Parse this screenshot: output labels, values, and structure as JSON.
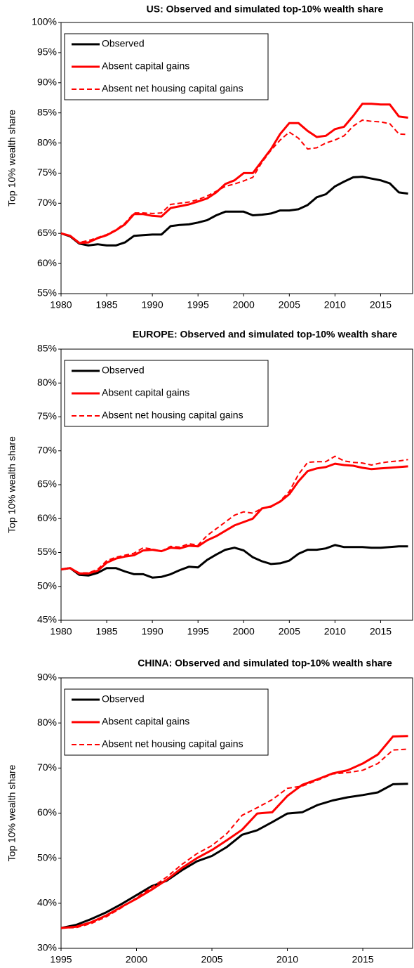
{
  "chart_data": [
    {
      "type": "line",
      "title": "US: Observed and simulated top-10% wealth share",
      "y_label": "Top 10% wealth share",
      "x": [
        1980,
        1981,
        1982,
        1983,
        1984,
        1985,
        1986,
        1987,
        1988,
        1989,
        1990,
        1991,
        1992,
        1993,
        1994,
        1995,
        1996,
        1997,
        1998,
        1999,
        2000,
        2001,
        2002,
        2003,
        2004,
        2005,
        2006,
        2007,
        2008,
        2009,
        2010,
        2011,
        2012,
        2013,
        2014,
        2015,
        2016,
        2017,
        2018
      ],
      "xlim": [
        1980,
        2018.5
      ],
      "xticks": [
        1980,
        1985,
        1990,
        1995,
        2000,
        2005,
        2010,
        2015
      ],
      "ylim": [
        55,
        100
      ],
      "yticks": [
        {
          "value": 55,
          "label": "55%"
        },
        {
          "value": 60,
          "label": "60%"
        },
        {
          "value": 65,
          "label": "65%"
        },
        {
          "value": 70,
          "label": "70%"
        },
        {
          "value": 75,
          "label": "75%"
        },
        {
          "value": 80,
          "label": "80%"
        },
        {
          "value": 85,
          "label": "85%"
        },
        {
          "value": 90,
          "label": "90%"
        },
        {
          "value": 95,
          "label": "95%"
        },
        {
          "value": 100,
          "label": "100%"
        }
      ],
      "legend": "upper left",
      "series": [
        {
          "name": "Observed",
          "color": "#000000",
          "dashed": false,
          "values": [
            65,
            64.5,
            63.3,
            63,
            63.2,
            63,
            63,
            63.5,
            64.6,
            64.7,
            64.8,
            64.8,
            66.2,
            66.4,
            66.5,
            66.8,
            67.2,
            68,
            68.6,
            68.6,
            68.6,
            68,
            68.1,
            68.3,
            68.8,
            68.8,
            69,
            69.7,
            71,
            71.5,
            72.8,
            73.6,
            74.3,
            74.4,
            74.1,
            73.8,
            73.3,
            71.8,
            71.6
          ]
        },
        {
          "name": "Absent capital gains",
          "color": "#ff0000",
          "dashed": false,
          "values": [
            65,
            64.6,
            63.4,
            63.5,
            64.2,
            64.7,
            65.5,
            66.5,
            68.2,
            68.2,
            67.9,
            67.8,
            69.2,
            69.5,
            69.8,
            70.3,
            70.8,
            71.8,
            73.2,
            73.8,
            75,
            75,
            77,
            79,
            81.5,
            83.3,
            83.3,
            82,
            81,
            81.2,
            82.3,
            82.7,
            84.5,
            86.5,
            86.5,
            86.4,
            86.4,
            84.4,
            84.2
          ]
        },
        {
          "name": "Absent net housing capital gains",
          "color": "#ff0000",
          "dashed": true,
          "values": [
            65,
            64.6,
            63.5,
            63.8,
            64.3,
            64.8,
            65.6,
            66.7,
            68.4,
            68.4,
            68.3,
            68.4,
            69.8,
            70,
            70.2,
            70.6,
            71.2,
            72,
            72.8,
            73.2,
            73.7,
            74.3,
            76.8,
            78.8,
            80.5,
            81.8,
            80.8,
            79,
            79.2,
            80,
            80.5,
            81.2,
            82.8,
            83.8,
            83.6,
            83.5,
            83.2,
            81.5,
            81.4
          ]
        }
      ]
    },
    {
      "type": "line",
      "title": "EUROPE: Observed and simulated top-10% wealth share",
      "y_label": "Top 10% wealth share",
      "x": [
        1980,
        1981,
        1982,
        1983,
        1984,
        1985,
        1986,
        1987,
        1988,
        1989,
        1990,
        1991,
        1992,
        1993,
        1994,
        1995,
        1996,
        1997,
        1998,
        1999,
        2000,
        2001,
        2002,
        2003,
        2004,
        2005,
        2006,
        2007,
        2008,
        2009,
        2010,
        2011,
        2012,
        2013,
        2014,
        2015,
        2016,
        2017,
        2018
      ],
      "xlim": [
        1980,
        2018.5
      ],
      "xticks": [
        1980,
        1985,
        1990,
        1995,
        2000,
        2005,
        2010,
        2015
      ],
      "ylim": [
        45,
        85
      ],
      "yticks": [
        {
          "value": 45,
          "label": "45%"
        },
        {
          "value": 50,
          "label": "50%"
        },
        {
          "value": 55,
          "label": "55%"
        },
        {
          "value": 60,
          "label": "60%"
        },
        {
          "value": 65,
          "label": "65%"
        },
        {
          "value": 70,
          "label": "70%"
        },
        {
          "value": 75,
          "label": "75%"
        },
        {
          "value": 80,
          "label": "80%"
        },
        {
          "value": 85,
          "label": "85%"
        }
      ],
      "legend": "upper left",
      "series": [
        {
          "name": "Observed",
          "color": "#000000",
          "dashed": false,
          "values": [
            52.5,
            52.7,
            51.7,
            51.6,
            52,
            52.7,
            52.7,
            52.2,
            51.8,
            51.8,
            51.3,
            51.4,
            51.8,
            52.4,
            52.9,
            52.8,
            53.9,
            54.7,
            55.4,
            55.7,
            55.3,
            54.3,
            53.7,
            53.3,
            53.4,
            53.8,
            54.8,
            55.4,
            55.4,
            55.6,
            56.1,
            55.8,
            55.8,
            55.8,
            55.7,
            55.7,
            55.8,
            55.9,
            55.9
          ]
        },
        {
          "name": "Absent capital gains",
          "color": "#ff0000",
          "dashed": false,
          "values": [
            52.5,
            52.7,
            51.9,
            51.9,
            52.3,
            53.5,
            54.1,
            54.4,
            54.6,
            55.3,
            55.4,
            55.2,
            55.7,
            55.6,
            56,
            55.9,
            56.8,
            57.4,
            58.2,
            59,
            59.5,
            60,
            61.5,
            61.8,
            62.5,
            63.6,
            65.5,
            67,
            67.4,
            67.6,
            68.1,
            67.9,
            67.8,
            67.5,
            67.3,
            67.4,
            67.5,
            67.6,
            67.7
          ]
        },
        {
          "name": "Absent net housing capital gains",
          "color": "#ff0000",
          "dashed": true,
          "values": [
            52.5,
            52.7,
            52,
            52,
            52.5,
            53.8,
            54.3,
            54.6,
            54.9,
            55.7,
            55.5,
            55.2,
            55.9,
            55.8,
            56.3,
            56.1,
            57.5,
            58.5,
            59.5,
            60.5,
            61,
            60.8,
            61.5,
            61.7,
            62.6,
            64,
            66.5,
            68.3,
            68.4,
            68.4,
            69.2,
            68.5,
            68.3,
            68.2,
            67.9,
            68.2,
            68.4,
            68.5,
            68.7
          ]
        }
      ]
    },
    {
      "type": "line",
      "title": "CHINA: Observed and simulated top-10% wealth share",
      "y_label": "Top 10% wealth share",
      "x": [
        1995,
        1996,
        1997,
        1998,
        1999,
        2000,
        2001,
        2002,
        2003,
        2004,
        2005,
        2006,
        2007,
        2008,
        2009,
        2010,
        2011,
        2012,
        2013,
        2014,
        2015,
        2016,
        2017,
        2018
      ],
      "xlim": [
        1995,
        2018.3
      ],
      "xticks": [
        1995,
        2000,
        2005,
        2010,
        2015
      ],
      "ylim": [
        30,
        90
      ],
      "yticks": [
        {
          "value": 30,
          "label": "30%"
        },
        {
          "value": 40,
          "label": "40%"
        },
        {
          "value": 50,
          "label": "50%"
        },
        {
          "value": 60,
          "label": "60%"
        },
        {
          "value": 70,
          "label": "70%"
        },
        {
          "value": 80,
          "label": "80%"
        },
        {
          "value": 90,
          "label": "90%"
        }
      ],
      "legend": "upper left",
      "series": [
        {
          "name": "Observed",
          "color": "#000000",
          "dashed": false,
          "values": [
            34.5,
            35.2,
            36.5,
            38,
            39.8,
            41.8,
            43.8,
            45,
            47.3,
            49.3,
            50.5,
            52.5,
            55.2,
            56.2,
            58,
            59.9,
            60.2,
            61.8,
            62.8,
            63.5,
            64,
            64.6,
            66.4,
            66.5
          ]
        },
        {
          "name": "Absent capital gains",
          "color": "#ff0000",
          "dashed": false,
          "values": [
            34.5,
            34.8,
            35.8,
            37.3,
            39.2,
            41,
            43,
            45.2,
            47.8,
            50,
            51.8,
            54,
            56.3,
            59.9,
            60.2,
            63.8,
            66.3,
            67.5,
            68.8,
            69.5,
            71,
            73,
            77,
            77.1
          ]
        },
        {
          "name": "Absent net housing capital gains",
          "color": "#ff0000",
          "dashed": true,
          "values": [
            34.5,
            34.6,
            35.5,
            37,
            39,
            41.2,
            43.5,
            45.8,
            48.6,
            51,
            52.8,
            55.5,
            59.5,
            61.2,
            63,
            65.5,
            66,
            67.3,
            68.7,
            69,
            69.5,
            71,
            74,
            74.2
          ]
        }
      ]
    }
  ]
}
